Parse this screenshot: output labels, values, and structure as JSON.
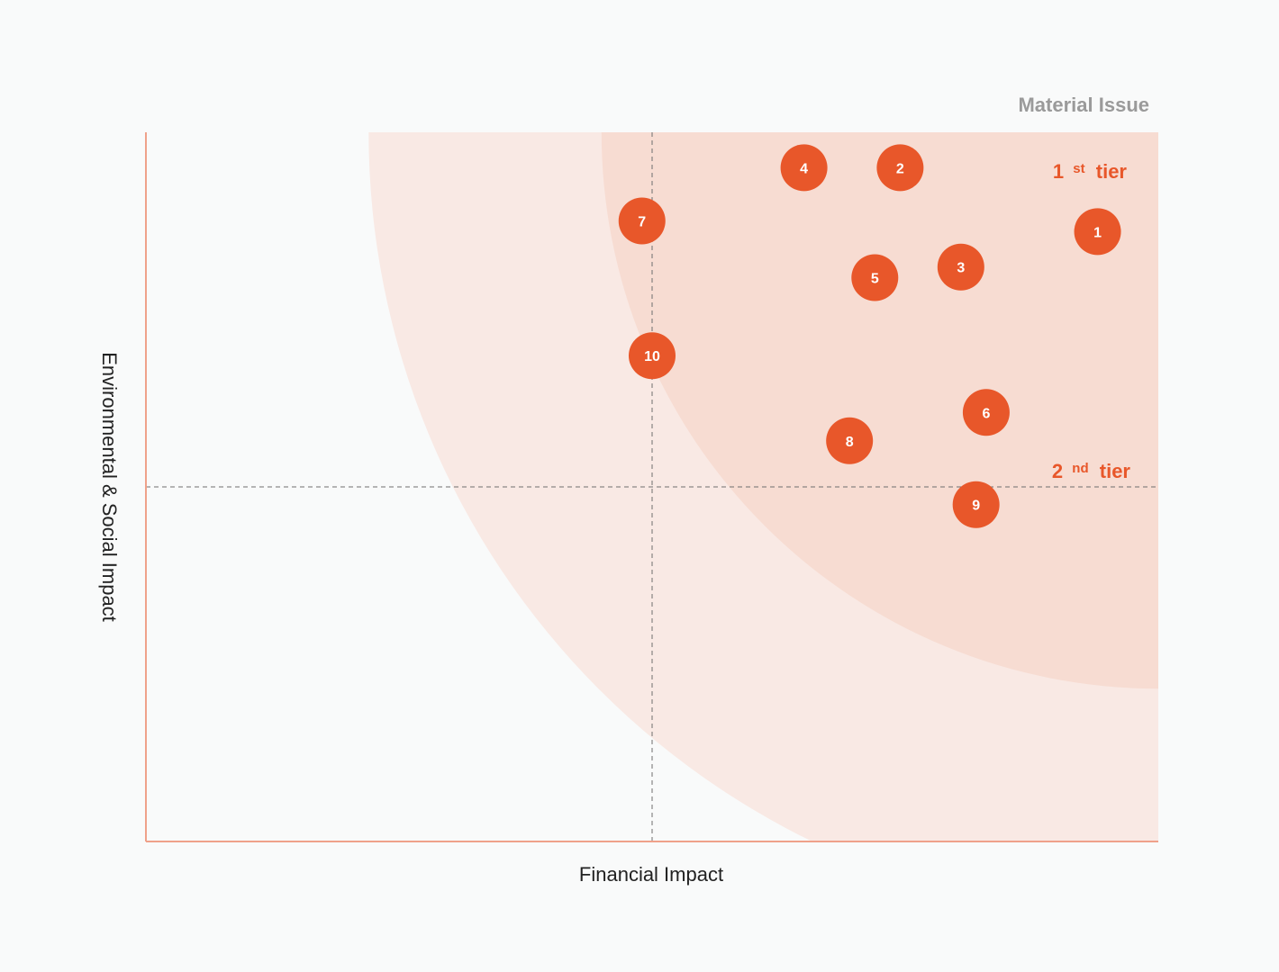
{
  "chart_data": {
    "type": "scatter",
    "legend_title": "Material Issue",
    "xlabel": "Financial Impact",
    "ylabel": "Environmental & Social Impact",
    "xlim": [
      0,
      10
    ],
    "ylim": [
      0,
      10
    ],
    "thresholds": {
      "x": 5,
      "y": 5
    },
    "tiers": [
      {
        "name": "1st tier",
        "num": "1",
        "sup": "st",
        "word": "tier",
        "color": "#f7dcd2",
        "radius": 5.5
      },
      {
        "name": "2nd tier",
        "num": "2",
        "sup": "nd",
        "word": "tier",
        "color": "#f9e9e4",
        "radius": 7.8
      }
    ],
    "accent_color": "#e8572a",
    "points": [
      {
        "label": "1",
        "x": 9.4,
        "y": 8.6
      },
      {
        "label": "2",
        "x": 7.45,
        "y": 9.5
      },
      {
        "label": "3",
        "x": 8.05,
        "y": 8.1
      },
      {
        "label": "4",
        "x": 6.5,
        "y": 9.5
      },
      {
        "label": "5",
        "x": 7.2,
        "y": 7.95
      },
      {
        "label": "6",
        "x": 8.3,
        "y": 6.05
      },
      {
        "label": "7",
        "x": 4.9,
        "y": 8.75
      },
      {
        "label": "8",
        "x": 6.95,
        "y": 5.65
      },
      {
        "label": "9",
        "x": 8.2,
        "y": 4.75
      },
      {
        "label": "10",
        "x": 5.0,
        "y": 6.85
      }
    ]
  }
}
